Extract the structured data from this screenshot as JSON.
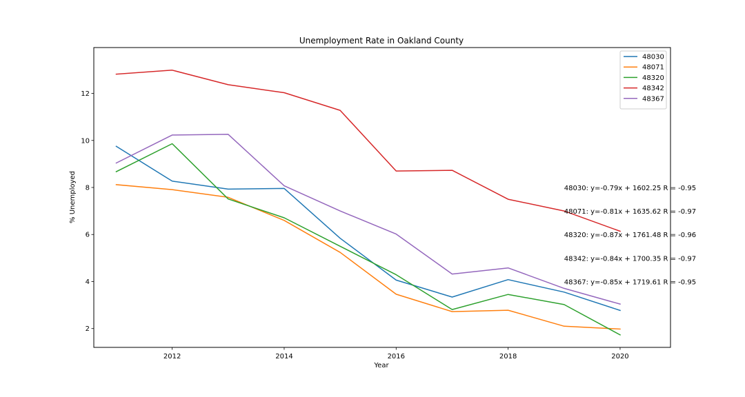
{
  "chart_data": {
    "type": "line",
    "title": "Unemployment Rate in Oakland County",
    "xlabel": "Year",
    "ylabel": "% Unemployed",
    "xlim": [
      2010.6,
      2020.9
    ],
    "ylim": [
      1.2,
      13.95
    ],
    "xticks": [
      "2012",
      "2014",
      "2016",
      "2018",
      "2020"
    ],
    "yticks": [
      "2",
      "4",
      "6",
      "8",
      "10",
      "12"
    ],
    "grid": false,
    "legend_position": "top-right",
    "x": [
      2011,
      2012,
      2013,
      2014,
      2015,
      2016,
      2017,
      2018,
      2019,
      2020
    ],
    "series": [
      {
        "name": "48030",
        "color": "#1f77b4",
        "values": [
          9.75,
          8.27,
          7.93,
          7.96,
          5.84,
          4.06,
          3.34,
          4.08,
          3.55,
          2.77
        ]
      },
      {
        "name": "48071",
        "color": "#ff7f0e",
        "values": [
          8.12,
          7.91,
          7.58,
          6.6,
          5.24,
          3.46,
          2.72,
          2.78,
          2.1,
          1.98
        ]
      },
      {
        "name": "48320",
        "color": "#2ca02c",
        "values": [
          8.67,
          9.86,
          7.51,
          6.71,
          5.5,
          4.29,
          2.81,
          3.45,
          3.02,
          1.73
        ]
      },
      {
        "name": "48342",
        "color": "#d62728",
        "values": [
          12.82,
          12.99,
          12.37,
          12.03,
          11.28,
          8.7,
          8.73,
          7.5,
          7.0,
          6.14
        ]
      },
      {
        "name": "48367",
        "color": "#9467bd",
        "values": [
          9.04,
          10.23,
          10.26,
          8.07,
          7.0,
          6.02,
          4.32,
          4.58,
          3.71,
          3.04
        ]
      }
    ],
    "annotations": [
      {
        "text": "48030: y=-0.79x + 1602.25 R = -0.95",
        "x": 2019,
        "y": 8.0
      },
      {
        "text": "48071: y=-0.81x + 1635.62 R = -0.97",
        "x": 2019,
        "y": 7.0
      },
      {
        "text": "48320: y=-0.87x + 1761.48 R = -0.96",
        "x": 2019,
        "y": 6.0
      },
      {
        "text": "48342: y=-0.84x + 1700.35 R = -0.97",
        "x": 2019,
        "y": 5.0
      },
      {
        "text": "48367: y=-0.85x + 1719.61 R = -0.95",
        "x": 2019,
        "y": 4.0
      }
    ]
  }
}
